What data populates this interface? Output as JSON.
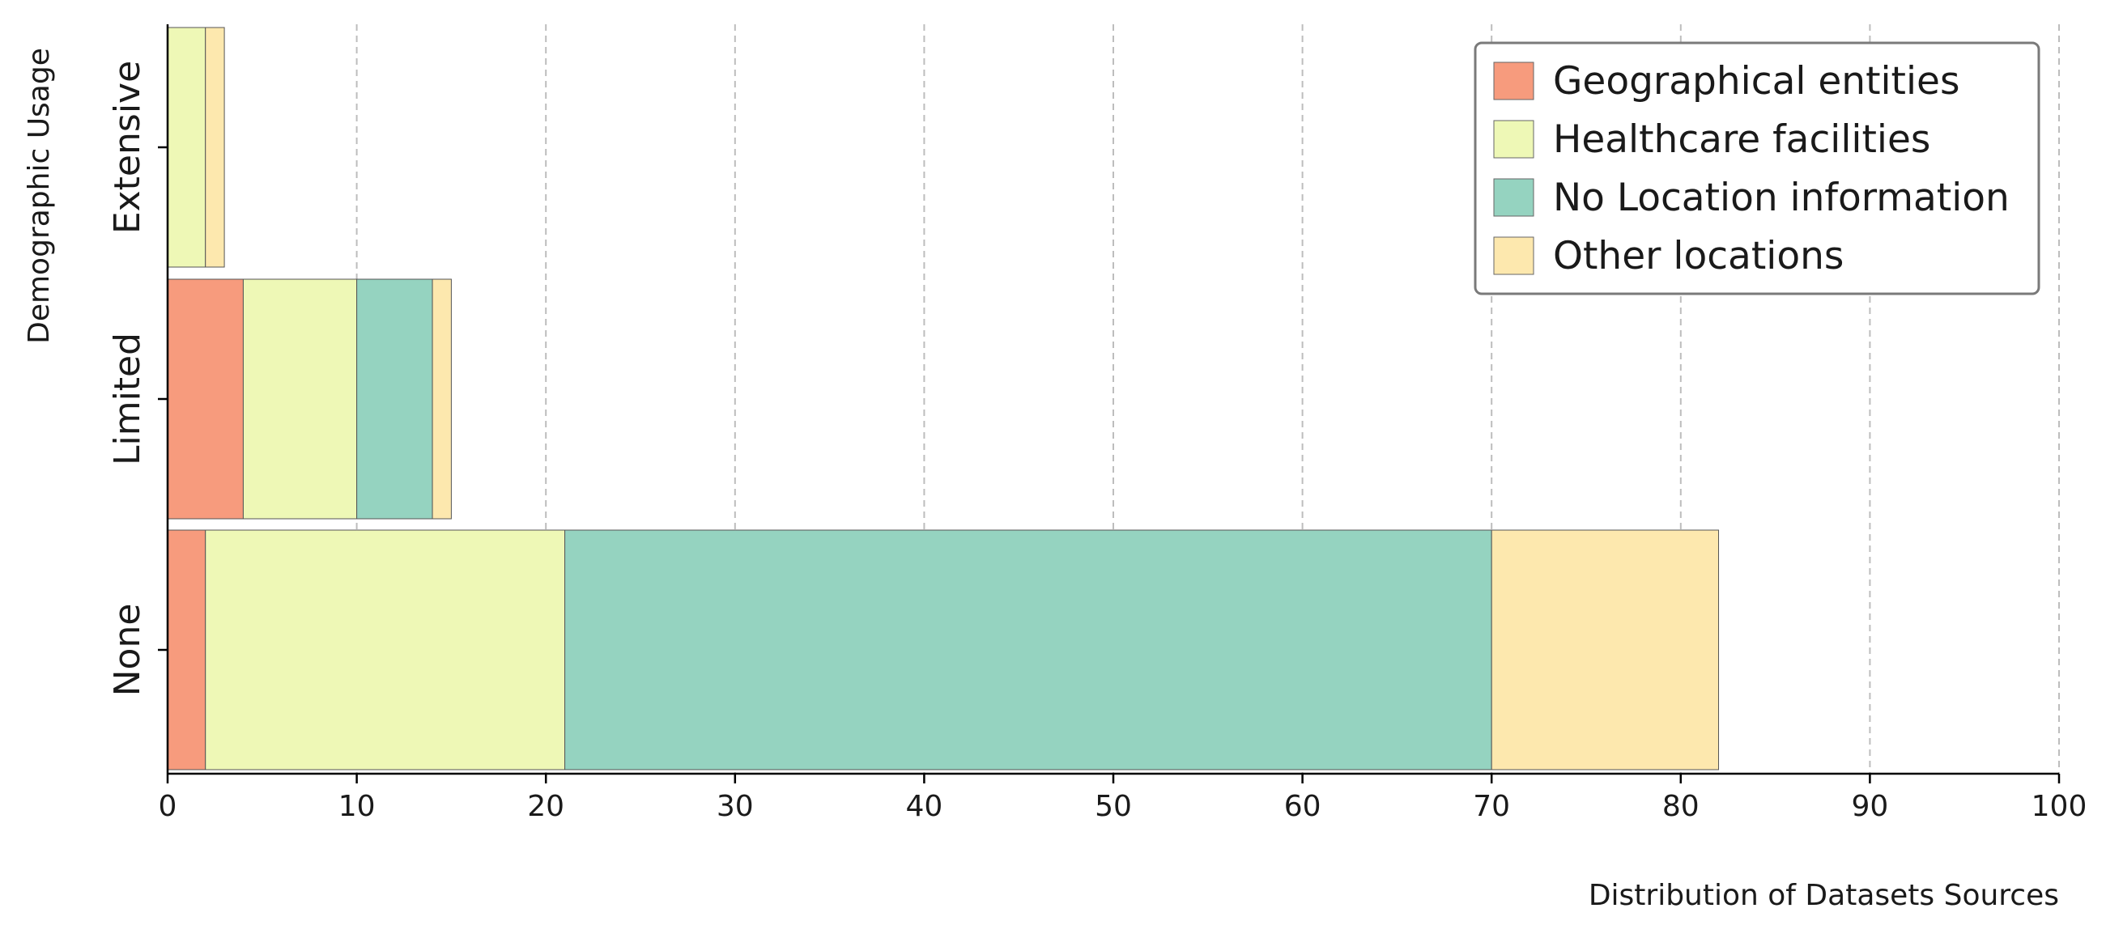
{
  "chart_data": {
    "type": "bar",
    "orientation": "horizontal",
    "stacked": true,
    "categories": [
      "Extensive",
      "Limited",
      "None"
    ],
    "series": [
      {
        "name": "Geographical entities",
        "color": "#f79b7d",
        "values": [
          0,
          4,
          2
        ]
      },
      {
        "name": "Healthcare facilities",
        "color": "#eef8b6",
        "values": [
          2,
          6,
          19
        ]
      },
      {
        "name": "No Location information",
        "color": "#95d3c0",
        "values": [
          0,
          4,
          49
        ]
      },
      {
        "name": "Other locations",
        "color": "#fde8ae",
        "values": [
          1,
          1,
          12
        ]
      }
    ],
    "xlabel": "Distribution of Datasets Sources",
    "ylabel": "Demographic Usage",
    "xlim": [
      0,
      100
    ],
    "xticks": [
      0,
      10,
      20,
      30,
      40,
      50,
      60,
      70,
      80,
      90,
      100
    ],
    "grid": "x-dashed",
    "legend_position": "top-right"
  }
}
